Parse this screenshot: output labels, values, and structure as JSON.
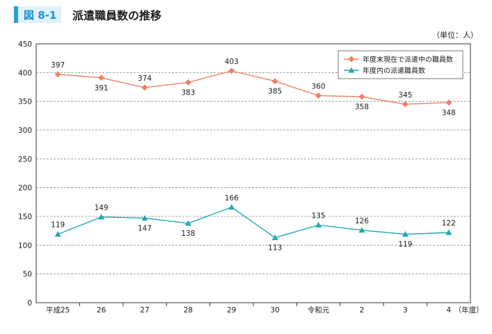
{
  "figure": {
    "badge": "図 8-1",
    "title": "派遣職員数の推移",
    "unit": "（単位：人）"
  },
  "chart_data": {
    "type": "line",
    "categories": [
      "平成25",
      "26",
      "27",
      "28",
      "29",
      "30",
      "令和元",
      "2",
      "3",
      "4"
    ],
    "x_suffix": "（年度）",
    "ylim": [
      0,
      450
    ],
    "yticks": [
      0,
      50,
      100,
      150,
      200,
      250,
      300,
      350,
      400,
      450
    ],
    "grid": true,
    "legend": "top-right",
    "series": [
      {
        "name": "年度末現在で派遣中の職員数",
        "color": "#f07f68",
        "marker": "diamond",
        "values": [
          397,
          391,
          374,
          383,
          403,
          385,
          360,
          358,
          345,
          348
        ],
        "label_pos": [
          "above",
          "below",
          "above",
          "below",
          "above",
          "below",
          "above",
          "below",
          "above",
          "below"
        ]
      },
      {
        "name": "年度内の派遣職員数",
        "color": "#20a9b0",
        "marker": "triangle",
        "values": [
          119,
          149,
          147,
          138,
          166,
          113,
          135,
          126,
          119,
          122
        ],
        "label_pos": [
          "above",
          "above",
          "below",
          "below",
          "above",
          "below",
          "above",
          "above",
          "below",
          "above"
        ]
      }
    ]
  }
}
